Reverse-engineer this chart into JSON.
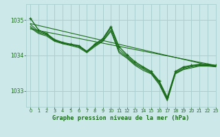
{
  "title": "Graphe pression niveau de la mer (hPa)",
  "bg_color": "#cce8e8",
  "grid_color": "#aacfcf",
  "line_color": "#1a6b1a",
  "xlim": [
    -0.5,
    23
  ],
  "ylim": [
    1032.55,
    1035.45
  ],
  "yticks": [
    1033,
    1034,
    1035
  ],
  "xticks": [
    0,
    1,
    2,
    3,
    4,
    5,
    6,
    7,
    8,
    9,
    10,
    11,
    12,
    13,
    14,
    15,
    16,
    17,
    18,
    19,
    20,
    21,
    22,
    23
  ],
  "series_marked": [
    [
      1035.05,
      1034.72,
      1034.62,
      1034.45,
      1034.37,
      1034.32,
      1034.28,
      1034.12,
      1034.32,
      1034.48,
      1034.82,
      1034.25,
      1034.02,
      1033.82,
      1033.68,
      1033.55,
      1033.28,
      1032.82,
      1033.55,
      1033.68,
      1033.72,
      1033.75,
      1033.75,
      1033.72
    ]
  ],
  "series_plain": [
    [
      1034.82,
      1034.65,
      1034.58,
      1034.42,
      1034.35,
      1034.3,
      1034.25,
      1034.1,
      1034.28,
      1034.42,
      1034.72,
      1034.12,
      1033.95,
      1033.75,
      1033.62,
      1033.5,
      1033.22,
      1032.75,
      1033.5,
      1033.62,
      1033.68,
      1033.72,
      1033.72,
      1033.7
    ],
    [
      1034.88,
      1034.68,
      1034.6,
      1034.43,
      1034.36,
      1034.31,
      1034.27,
      1034.11,
      1034.3,
      1034.45,
      1034.78,
      1034.18,
      1033.98,
      1033.78,
      1033.65,
      1033.52,
      1033.25,
      1032.78,
      1033.52,
      1033.65,
      1033.7,
      1033.73,
      1033.73,
      1033.71
    ],
    [
      1034.78,
      1034.62,
      1034.55,
      1034.4,
      1034.33,
      1034.28,
      1034.22,
      1034.08,
      1034.25,
      1034.4,
      1034.68,
      1034.08,
      1033.92,
      1033.72,
      1033.58,
      1033.48,
      1033.18,
      1032.72,
      1033.48,
      1033.6,
      1033.65,
      1033.7,
      1033.7,
      1033.68
    ]
  ],
  "trend_lines": [
    [
      [
        0,
        23
      ],
      [
        1034.9,
        1033.68
      ]
    ],
    [
      [
        0,
        23
      ],
      [
        1034.75,
        1033.72
      ]
    ]
  ]
}
